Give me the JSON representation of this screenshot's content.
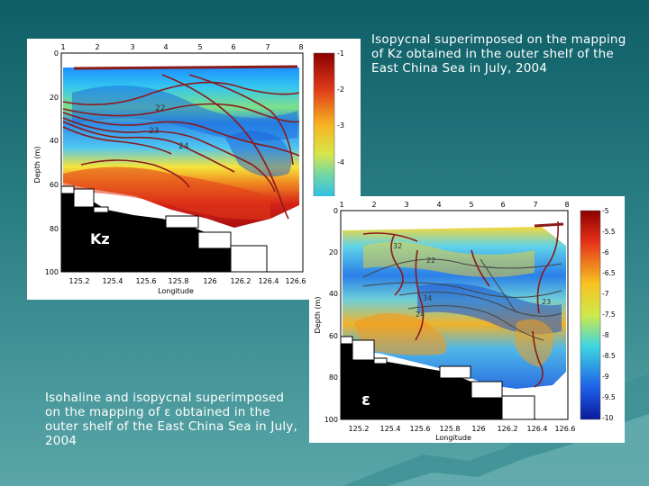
{
  "slide": {
    "caption_top": "Isopycnal superimposed on the mapping of Kz obtained in the outer shelf of the East China Sea in July, 2004",
    "caption_bottom": "Isohaline and isopycnal superimposed on the mapping of ε obtained in the outer shelf of the East China Sea in July, 2004"
  },
  "figures": [
    {
      "id": "kz",
      "panel_label": "Kz",
      "station_ticks": [
        "1",
        "2",
        "3",
        "4",
        "5",
        "6",
        "7",
        "8"
      ],
      "depth_ticks": [
        "0",
        "20",
        "40",
        "60",
        "80",
        "100"
      ],
      "longitude_ticks": [
        "125.2",
        "125.4",
        "125.6",
        "125.8",
        "126",
        "126.2",
        "126.4",
        "126.6"
      ],
      "xlabel": "Longitude",
      "ylabel": "Depth (m)",
      "colorbar_ticks": [
        "-1",
        "-2",
        "-3",
        "-4"
      ],
      "contour_labels": [
        "22",
        "23",
        "24"
      ]
    },
    {
      "id": "eps",
      "panel_label": "ε",
      "station_ticks": [
        "1",
        "2",
        "3",
        "4",
        "5",
        "6",
        "7",
        "8"
      ],
      "depth_ticks": [
        "0",
        "20",
        "40",
        "60",
        "80",
        "100"
      ],
      "longitude_ticks": [
        "125.2",
        "125.4",
        "125.6",
        "125.8",
        "126",
        "126.2",
        "126.4",
        "126.6"
      ],
      "xlabel": "Longitude",
      "ylabel": "Depth (m)",
      "colorbar_ticks": [
        "-5",
        "-5.5",
        "-6",
        "-6.5",
        "-7",
        "-7.5",
        "-8",
        "-8.5",
        "-9",
        "-9.5",
        "-10"
      ],
      "contour_labels": [
        "32",
        "22",
        "34",
        "23",
        "24"
      ]
    }
  ],
  "colors": {
    "background_top": "#0e5e66",
    "background_bottom": "#5aa6a8",
    "contour": "#8b1a1a",
    "land": "#000000"
  }
}
